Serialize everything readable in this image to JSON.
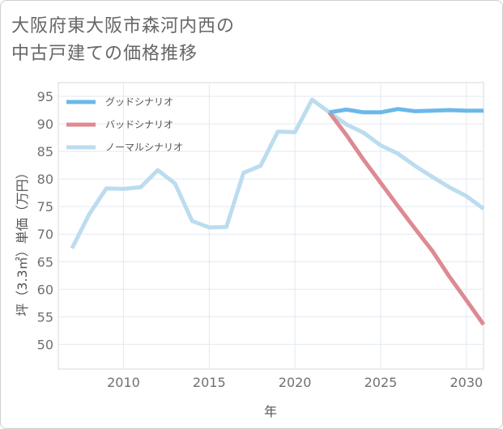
{
  "title_lines": [
    "大阪府東大阪市森河内西の",
    "中古戸建ての価格推移"
  ],
  "chart_data": {
    "type": "line",
    "title": "大阪府東大阪市森河内西の中古戸建ての価格推移",
    "xlabel": "年",
    "ylabel": "坪（3.3㎡）単価（万円）",
    "xlim": [
      2006.2,
      2031
    ],
    "ylim": [
      45.5,
      97.5
    ],
    "xticks": [
      2010,
      2015,
      2020,
      2025,
      2030
    ],
    "yticks": [
      50,
      55,
      60,
      65,
      70,
      75,
      80,
      85,
      90,
      95
    ],
    "grid": true,
    "legend_position": "top-left",
    "series": [
      {
        "name": "グッドシナリオ",
        "color": "#6bb8ea",
        "x": [
          2022,
          2023,
          2024,
          2025,
          2026,
          2027,
          2028,
          2029,
          2030,
          2031
        ],
        "y": [
          92.1,
          92.6,
          92.1,
          92.1,
          92.7,
          92.3,
          92.4,
          92.5,
          92.4,
          92.4
        ]
      },
      {
        "name": "バッドシナリオ",
        "color": "#dd8a93",
        "x": [
          2022,
          2023,
          2024,
          2025,
          2026,
          2027,
          2028,
          2029,
          2030,
          2031
        ],
        "y": [
          92.1,
          88.0,
          83.5,
          79.3,
          75.1,
          71.0,
          67.0,
          62.3,
          58.0,
          53.6
        ]
      },
      {
        "name": "ノーマルシナリオ",
        "color": "#bcdcef",
        "x": [
          2007,
          2008,
          2009,
          2010,
          2011,
          2012,
          2013,
          2014,
          2015,
          2016,
          2017,
          2018,
          2019,
          2020,
          2021,
          2022,
          2023,
          2024,
          2025,
          2026,
          2027,
          2028,
          2029,
          2030,
          2031
        ],
        "y": [
          67.4,
          73.6,
          78.3,
          78.2,
          78.5,
          81.6,
          79.2,
          72.4,
          71.2,
          71.3,
          81.1,
          82.4,
          88.6,
          88.5,
          94.4,
          92.1,
          89.9,
          88.4,
          86.1,
          84.6,
          82.4,
          80.4,
          78.5,
          76.9,
          74.6
        ]
      }
    ]
  }
}
